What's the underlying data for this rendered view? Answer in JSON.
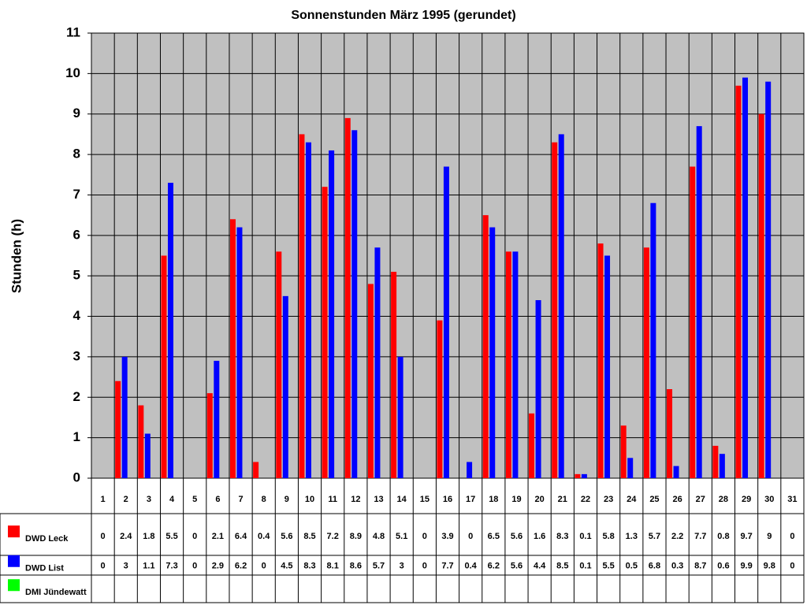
{
  "chart_data": {
    "type": "bar",
    "title": "Sonnenstunden März 1995 (gerundet)",
    "y_label": "Stunden (h)",
    "categories": [
      "1",
      "2",
      "3",
      "4",
      "5",
      "6",
      "7",
      "8",
      "9",
      "10",
      "11",
      "12",
      "13",
      "14",
      "15",
      "16",
      "17",
      "18",
      "19",
      "20",
      "21",
      "22",
      "23",
      "24",
      "25",
      "26",
      "27",
      "28",
      "29",
      "30",
      "31"
    ],
    "series": [
      {
        "name": "DWD Leck",
        "color": "#ff0000",
        "values": [
          0,
          2.4,
          1.8,
          5.5,
          0,
          2.1,
          6.4,
          0.4,
          5.6,
          8.5,
          7.2,
          8.9,
          4.8,
          5.1,
          0,
          3.9,
          0,
          6.5,
          5.6,
          1.6,
          8.3,
          0.1,
          5.8,
          1.3,
          5.7,
          2.2,
          7.7,
          0.8,
          9.7,
          9,
          0
        ]
      },
      {
        "name": "DWD List",
        "color": "#0000ff",
        "values": [
          0,
          3,
          1.1,
          7.3,
          0,
          2.9,
          6.2,
          0,
          4.5,
          8.3,
          8.1,
          8.6,
          5.7,
          3,
          0,
          7.7,
          0.4,
          6.2,
          5.6,
          4.4,
          8.5,
          0.1,
          5.5,
          0.5,
          6.8,
          0.3,
          8.7,
          0.6,
          9.9,
          9.8,
          0
        ]
      },
      {
        "name": "DMI Jündewatt",
        "color": "#00ff00",
        "values": [
          null,
          null,
          null,
          null,
          null,
          null,
          null,
          null,
          null,
          null,
          null,
          null,
          null,
          null,
          null,
          null,
          null,
          null,
          null,
          null,
          null,
          null,
          null,
          null,
          null,
          null,
          null,
          null,
          null,
          null,
          null
        ]
      }
    ],
    "ylim": [
      0,
      11
    ],
    "yticks": [
      0,
      1,
      2,
      3,
      4,
      5,
      6,
      7,
      8,
      9,
      10,
      11
    ],
    "grid": true
  }
}
